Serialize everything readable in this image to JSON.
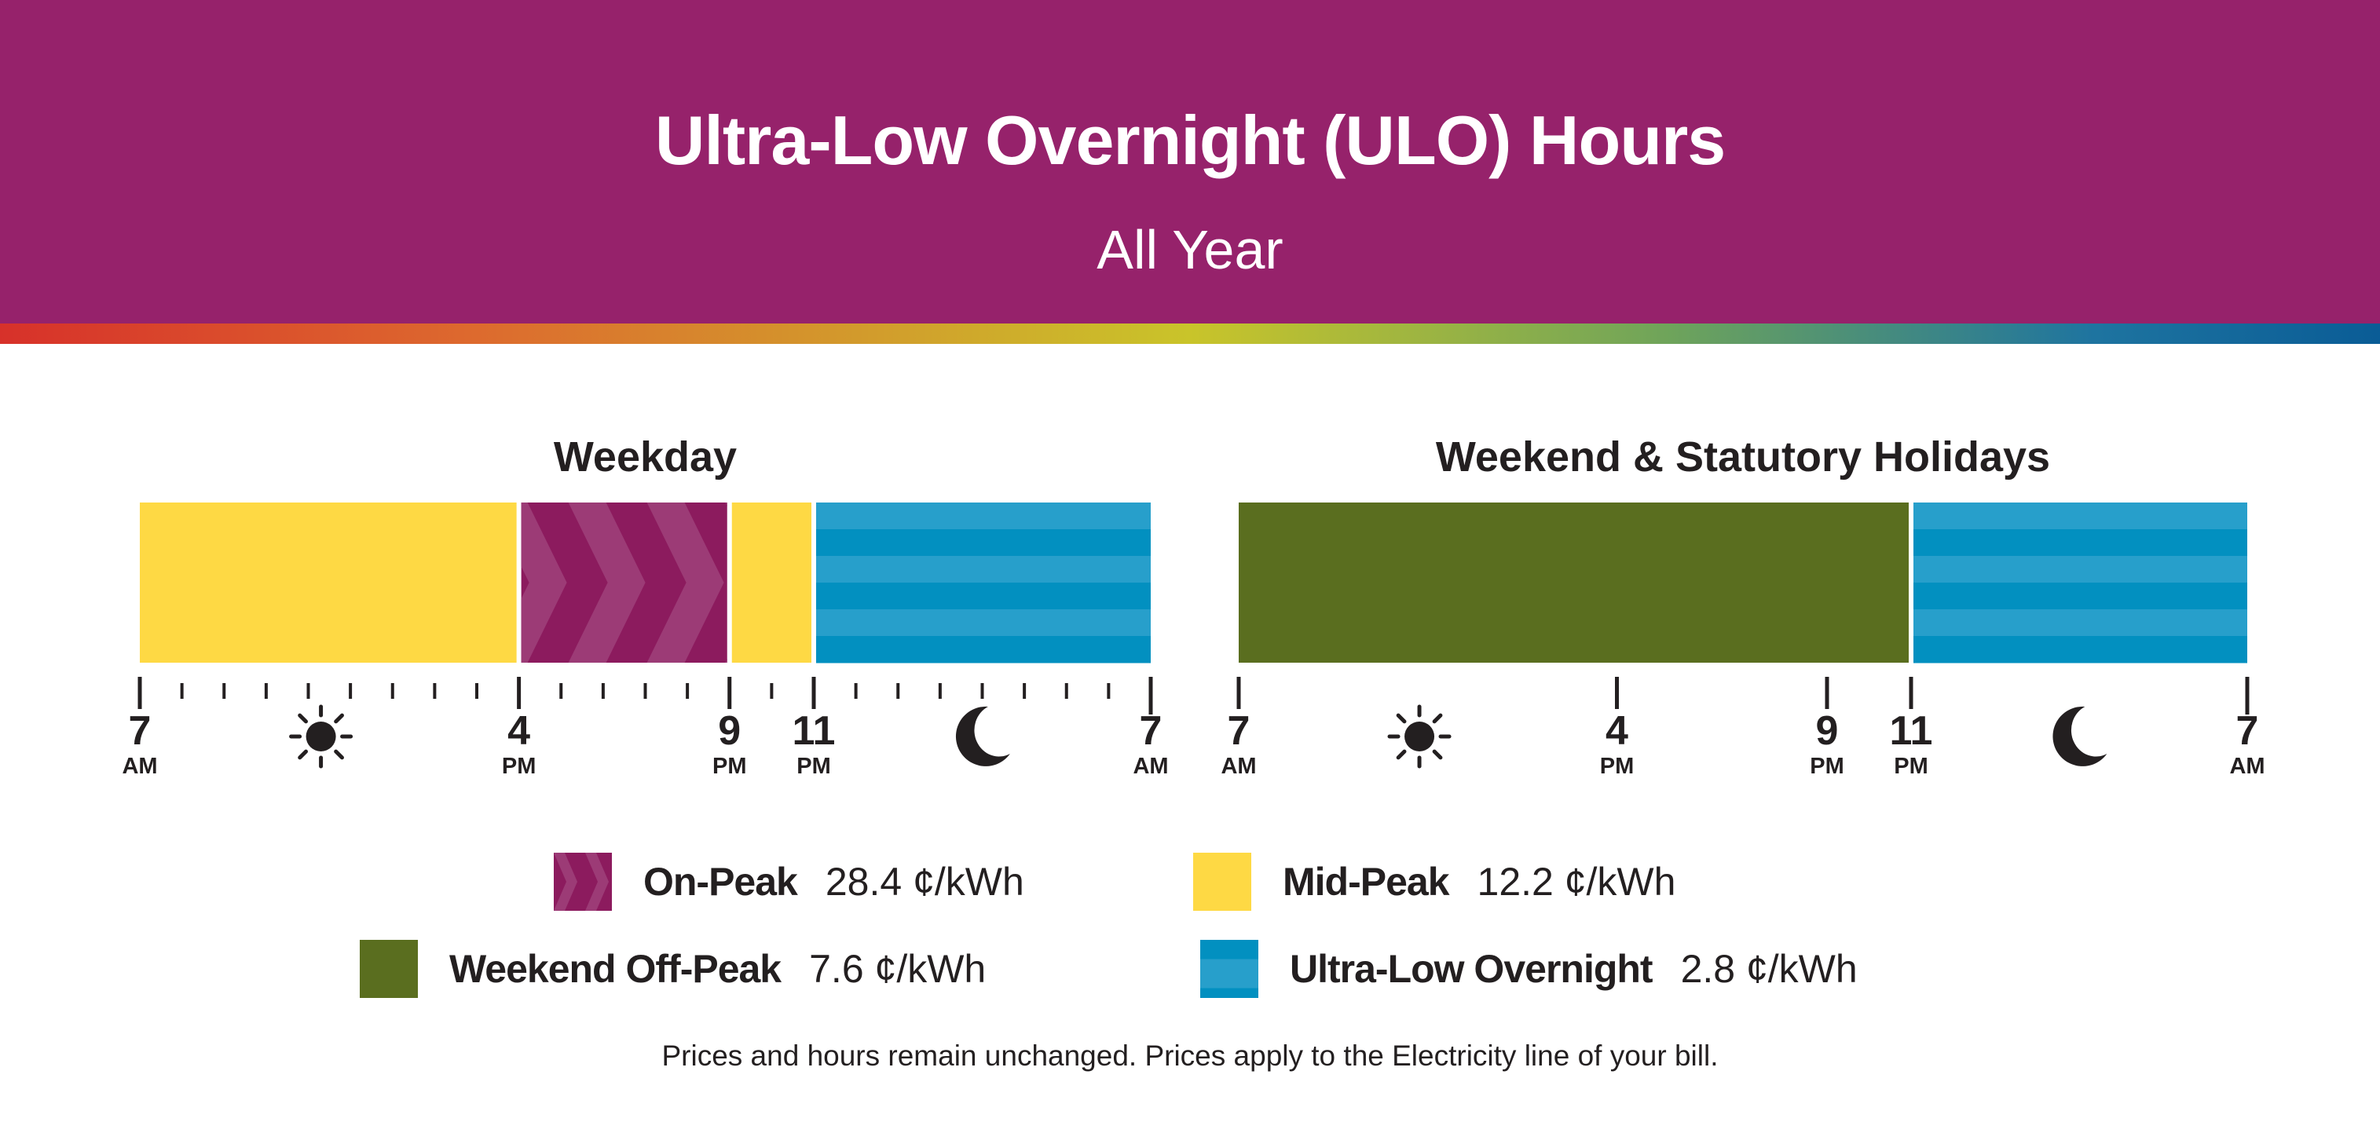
{
  "header": {
    "title": "Ultra-Low Overnight (ULO) Hours",
    "subtitle": "All Year"
  },
  "colors": {
    "on_peak": "#8c1b5e",
    "on_peak_light": "#9c3b76",
    "mid_peak": "#fed944",
    "off_peak": "#5a6e1f",
    "ulo_light": "#279fcb",
    "ulo_dark": "#0290c0",
    "brand": "#96226b"
  },
  "chart_data": [
    {
      "type": "bar",
      "title": "Weekday",
      "x_unit": "hours after 7 AM",
      "xlim": [
        0,
        24
      ],
      "segments": [
        {
          "period": "Mid-Peak",
          "start": 0,
          "end": 9
        },
        {
          "period": "On-Peak",
          "start": 9,
          "end": 14
        },
        {
          "period": "Mid-Peak",
          "start": 14,
          "end": 16
        },
        {
          "period": "Ultra-Low Overnight",
          "start": 16,
          "end": 24
        }
      ],
      "tick_labels": [
        {
          "at": 0,
          "num": "7",
          "ampm": "AM"
        },
        {
          "at": 9,
          "num": "4",
          "ampm": "PM"
        },
        {
          "at": 14,
          "num": "9",
          "ampm": "PM"
        },
        {
          "at": 16,
          "num": "11",
          "ampm": "PM"
        },
        {
          "at": 24,
          "num": "7",
          "ampm": "AM"
        }
      ],
      "icons": [
        {
          "name": "sun-icon",
          "at": 4.3
        },
        {
          "name": "moon-icon",
          "at": 20.1
        }
      ]
    },
    {
      "type": "bar",
      "title": "Weekend & Statutory Holidays",
      "x_unit": "hours after 7 AM",
      "xlim": [
        0,
        24
      ],
      "segments": [
        {
          "period": "Weekend Off-Peak",
          "start": 0,
          "end": 16
        },
        {
          "period": "Ultra-Low Overnight",
          "start": 16,
          "end": 24
        }
      ],
      "tick_labels": [
        {
          "at": 0,
          "num": "7",
          "ampm": "AM"
        },
        {
          "at": 9,
          "num": "4",
          "ampm": "PM"
        },
        {
          "at": 14,
          "num": "9",
          "ampm": "PM"
        },
        {
          "at": 16,
          "num": "11",
          "ampm": "PM"
        },
        {
          "at": 24,
          "num": "7",
          "ampm": "AM"
        }
      ],
      "icons": [
        {
          "name": "sun-icon",
          "at": 4.3
        },
        {
          "name": "moon-icon",
          "at": 20.1
        }
      ]
    }
  ],
  "legend": [
    {
      "label": "On-Peak",
      "price": "28.4 ¢/kWh"
    },
    {
      "label": "Mid-Peak",
      "price": "12.2 ¢/kWh"
    },
    {
      "label": "Weekend Off-Peak",
      "price": "7.6 ¢/kWh"
    },
    {
      "label": "Ultra-Low Overnight",
      "price": "2.8 ¢/kWh"
    }
  ],
  "footnote": "Prices and hours remain unchanged. Prices apply to the Electricity line of your bill."
}
